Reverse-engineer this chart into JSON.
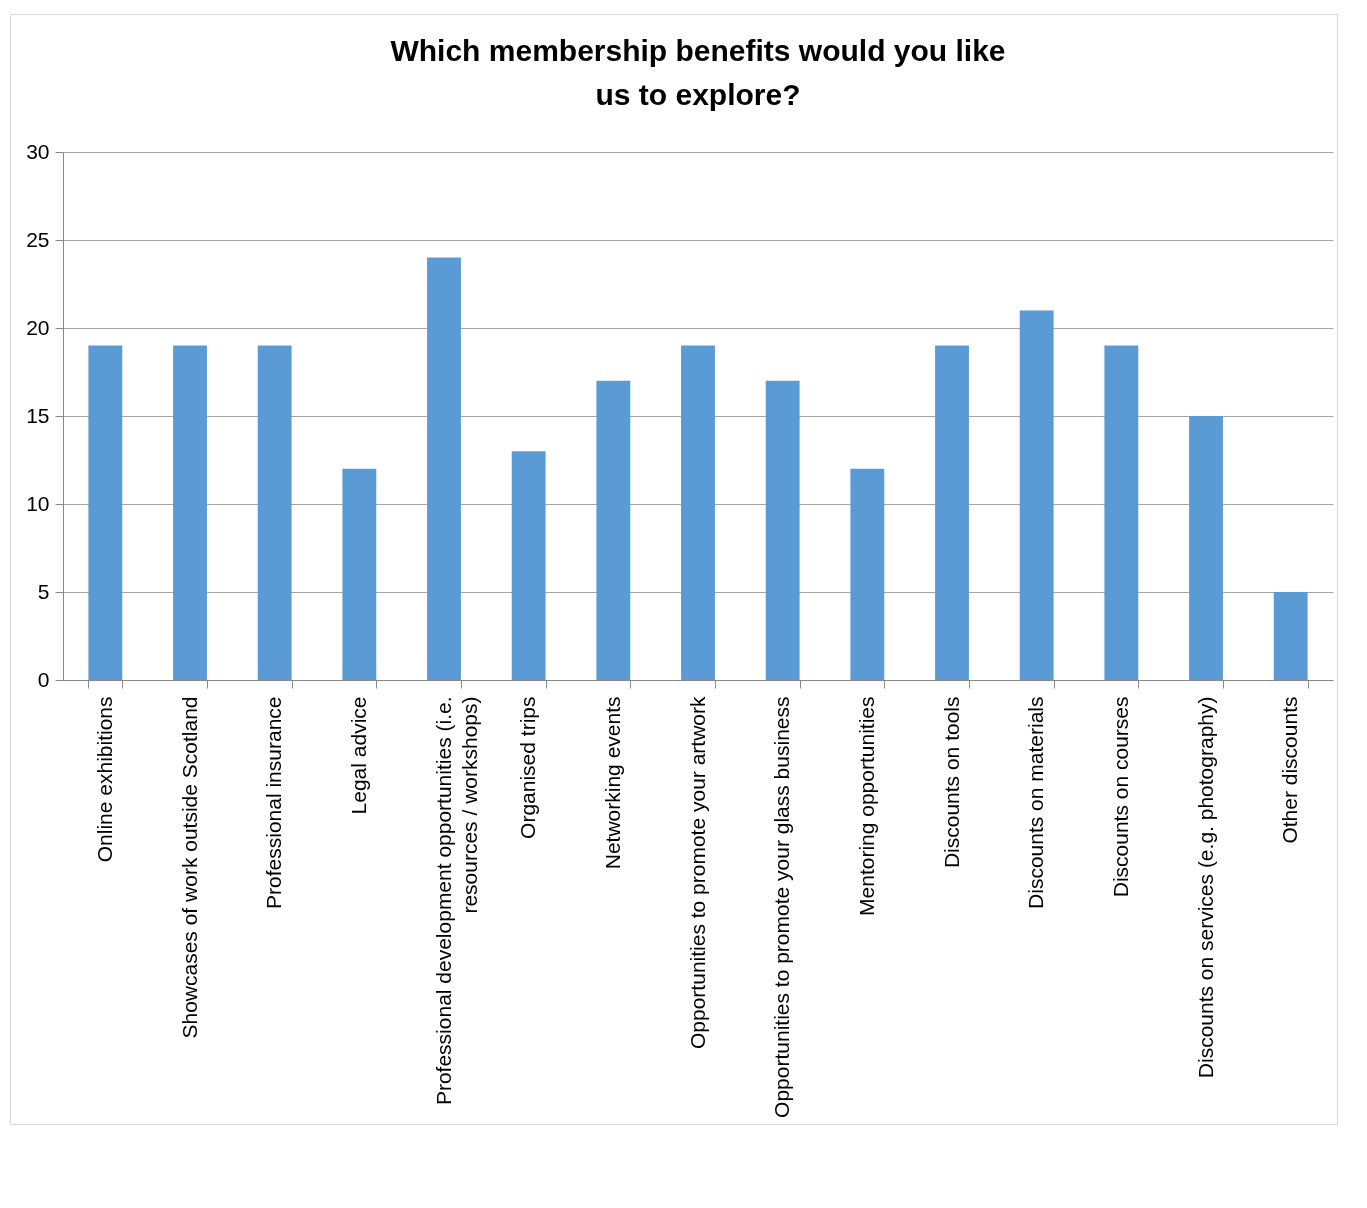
{
  "chart_data": {
    "type": "bar",
    "title": "Which membership benefits would you like us to explore?",
    "categories": [
      "Online exhibitions",
      "Showcases of work outside Scotland",
      "Professional insurance",
      "Legal advice",
      "Professional development opportunities (i.e. resources / workshops)",
      "Organised trips",
      "Networking events",
      "Opportunities to promote your artwork",
      "Opportunities to promote your glass business",
      "Mentoring opportunities",
      "Discounts on tools",
      "Discounts on materials",
      "Discounts on courses",
      "Discounts on services (e.g. photography)",
      "Other discounts"
    ],
    "values": [
      19,
      19,
      19,
      12,
      24,
      13,
      17,
      19,
      17,
      12,
      19,
      21,
      19,
      15,
      5
    ],
    "color": "#5b9bd5",
    "ylim": [
      0,
      30
    ],
    "yticks": [
      0,
      5,
      10,
      15,
      20,
      25,
      30
    ],
    "grid": true
  }
}
